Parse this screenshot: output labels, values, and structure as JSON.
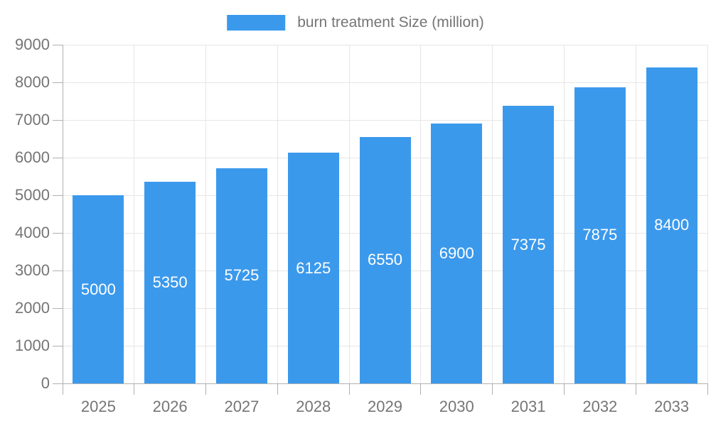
{
  "chart_data": {
    "type": "bar",
    "title": "burn treatment Size (million)",
    "legend": [
      "burn treatment Size (million)"
    ],
    "legend_position": "top",
    "categories": [
      "2025",
      "2026",
      "2027",
      "2028",
      "2029",
      "2030",
      "2031",
      "2032",
      "2033"
    ],
    "values": [
      5000,
      5350,
      5725,
      6125,
      6550,
      6900,
      7375,
      7875,
      8400
    ],
    "xlabel": "",
    "ylabel": "",
    "ylim": [
      0,
      9000
    ],
    "yticks": [
      0,
      1000,
      2000,
      3000,
      4000,
      5000,
      6000,
      7000,
      8000,
      9000
    ],
    "grid": "on",
    "bar_value_labels_shown": true
  },
  "colors": {
    "bar": "#3B99EC",
    "bar_label_text": "#FFFFFF",
    "axis_text": "#757575",
    "grid_line": "#E6E6E6",
    "axis_line": "#B0B0B0",
    "background": "#FFFFFF"
  }
}
